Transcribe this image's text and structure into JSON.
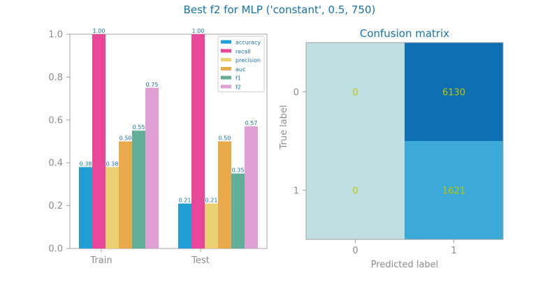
{
  "figure": {
    "title": "Best f2 for MLP ('constant', 0.5, 750)"
  },
  "chart_data": [
    {
      "type": "bar",
      "categories": [
        "Train",
        "Test"
      ],
      "series": [
        {
          "name": "accuracy",
          "values": [
            0.38,
            0.21
          ],
          "labels": [
            "0.38",
            "0.21"
          ],
          "color": "#1f9fd6"
        },
        {
          "name": "recall",
          "values": [
            1.0,
            1.0
          ],
          "labels": [
            "1.00",
            "1.00"
          ],
          "color": "#e8479a"
        },
        {
          "name": "precision",
          "values": [
            0.38,
            0.21
          ],
          "labels": [
            "0.38",
            "0.21"
          ],
          "color": "#ecd172"
        },
        {
          "name": "auc",
          "values": [
            0.5,
            0.5
          ],
          "labels": [
            "0.50",
            "0.50"
          ],
          "color": "#e8aa4a"
        },
        {
          "name": "f1",
          "values": [
            0.55,
            0.35
          ],
          "labels": [
            "0.55",
            "0.35"
          ],
          "color": "#61ae99"
        },
        {
          "name": "f2",
          "values": [
            0.75,
            0.57
          ],
          "labels": [
            "0.75",
            "0.57"
          ],
          "color": "#e0a0d6"
        }
      ],
      "ylim": [
        0.0,
        1.0
      ],
      "yticks": [
        "0.0",
        "0.2",
        "0.4",
        "0.6",
        "0.8",
        "1.0"
      ],
      "legend_position": "top-right",
      "grid": false
    },
    {
      "type": "heatmap",
      "title": "Confusion matrix",
      "xlabel": "Predicted label",
      "ylabel": "True label",
      "x_tick_labels": [
        "0",
        "1"
      ],
      "y_tick_labels": [
        "0",
        "1"
      ],
      "matrix": [
        [
          0,
          6130
        ],
        [
          0,
          1621
        ]
      ],
      "cell_labels": [
        [
          "0",
          "6130"
        ],
        [
          "0",
          "1621"
        ]
      ],
      "cell_colors": [
        [
          "#bfdfe3",
          "#0e70b3"
        ],
        [
          "#bfdfe3",
          "#3baad9"
        ]
      ],
      "value_color": "#c4c400",
      "grid": false
    }
  ],
  "colors": {
    "title": "#1672a8",
    "axis_text": "#8c8c8c",
    "spine": "#a0a0a0",
    "legend_text": "#1672a8",
    "bar_label": "#1672a8"
  }
}
